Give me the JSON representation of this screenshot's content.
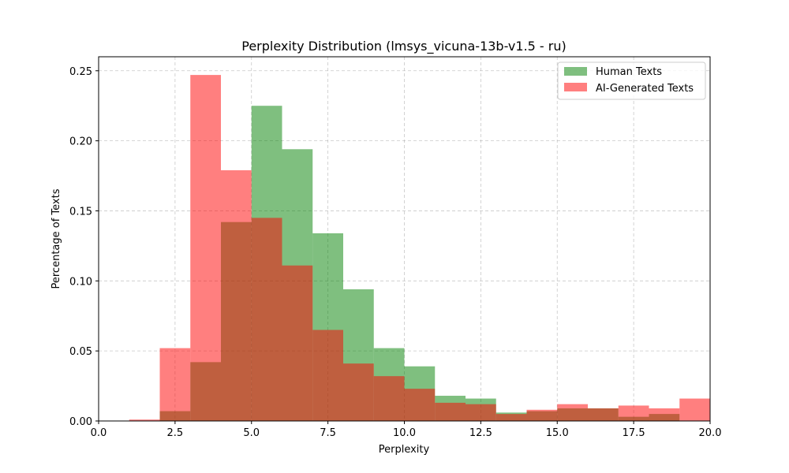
{
  "chart_data": {
    "type": "bar",
    "title": "Perplexity Distribution (lmsys_vicuna-13b-v1.5 - ru)",
    "xlabel": "Perplexity",
    "ylabel": "Percentage of Texts",
    "xlim": [
      0,
      20
    ],
    "ylim": [
      0,
      0.26
    ],
    "xticks": [
      "0.0",
      "2.5",
      "5.0",
      "7.5",
      "10.0",
      "12.5",
      "15.0",
      "17.5",
      "20.0"
    ],
    "yticks": [
      "0.00",
      "0.05",
      "0.10",
      "0.15",
      "0.20",
      "0.25"
    ],
    "grid": true,
    "legend_position": "top-right",
    "bin_edges": [
      1,
      2,
      3,
      4,
      5,
      6,
      7,
      8,
      9,
      10,
      11,
      12,
      13,
      14,
      15,
      16,
      17,
      18,
      19,
      20
    ],
    "series": [
      {
        "name": "Human Texts",
        "color": "#008000",
        "opacity": 0.5,
        "values": [
          0.0,
          0.007,
          0.042,
          0.142,
          0.225,
          0.194,
          0.134,
          0.094,
          0.052,
          0.039,
          0.018,
          0.016,
          0.006,
          0.007,
          0.009,
          0.009,
          0.003,
          0.005,
          0.0
        ]
      },
      {
        "name": "AI-Generated Texts",
        "color": "#ff0000",
        "opacity": 0.5,
        "values": [
          0.001,
          0.052,
          0.247,
          0.179,
          0.145,
          0.111,
          0.065,
          0.041,
          0.032,
          0.023,
          0.013,
          0.012,
          0.005,
          0.008,
          0.012,
          0.009,
          0.011,
          0.009,
          0.016
        ]
      }
    ]
  }
}
